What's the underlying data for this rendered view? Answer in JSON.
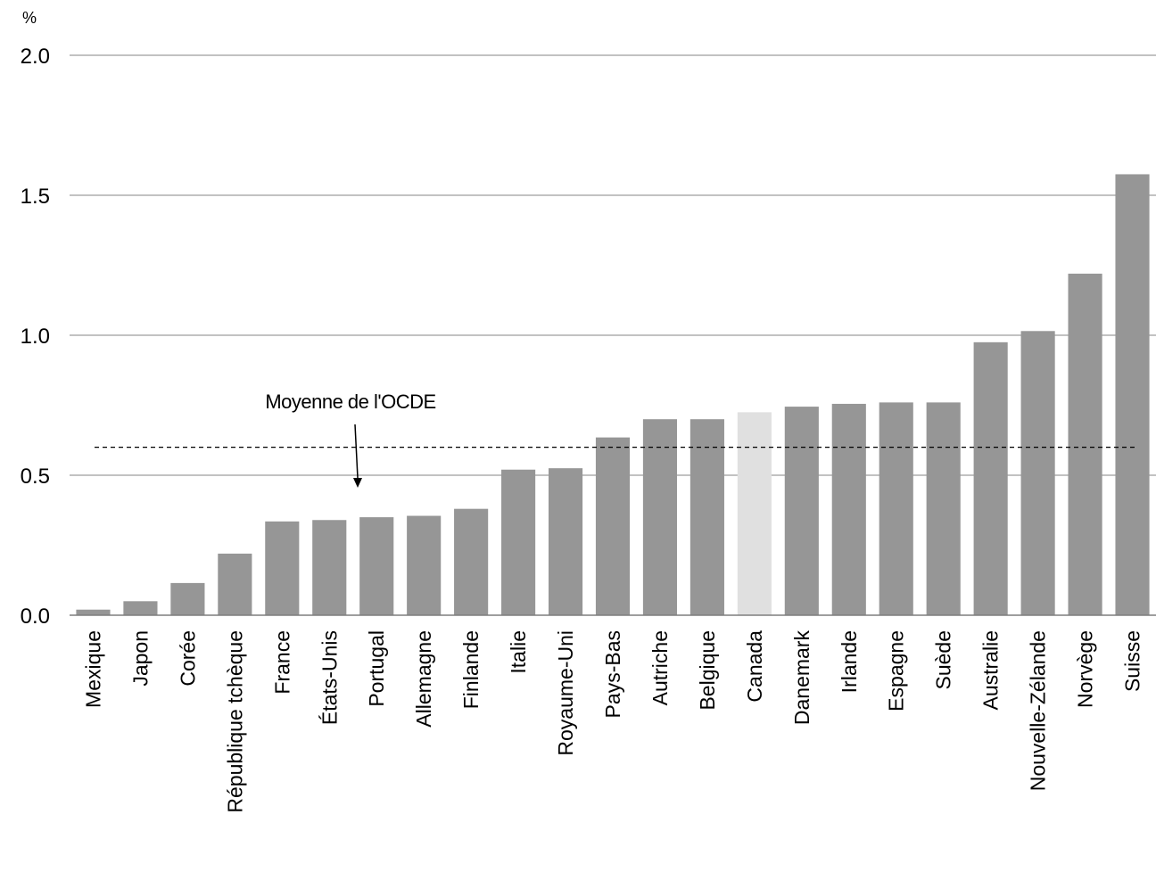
{
  "chart_data": {
    "type": "bar",
    "unit_label": "%",
    "ylim": [
      0,
      2.0
    ],
    "y_ticks": [
      "0.0",
      "0.5",
      "1.0",
      "1.5",
      "2.0"
    ],
    "y_tick_values": [
      0,
      0.5,
      1.0,
      1.5,
      2.0
    ],
    "grid": true,
    "categories": [
      "Mexique",
      "Japon",
      "Corée",
      "République tchèque",
      "France",
      "États-Unis",
      "Portugal",
      "Allemagne",
      "Finlande",
      "Italie",
      "Royaume-Uni",
      "Pays-Bas",
      "Autriche",
      "Belgique",
      "Canada",
      "Danemark",
      "Irlande",
      "Espagne",
      "Suède",
      "Australie",
      "Nouvelle-Zélande",
      "Norvège",
      "Suisse"
    ],
    "values": [
      0.02,
      0.05,
      0.115,
      0.22,
      0.335,
      0.34,
      0.35,
      0.355,
      0.38,
      0.52,
      0.525,
      0.635,
      0.7,
      0.7,
      0.725,
      0.745,
      0.755,
      0.76,
      0.76,
      0.975,
      1.015,
      1.22,
      1.575
    ],
    "highlight_category": "Canada",
    "colors": {
      "bar": "#969696",
      "highlight": "#e0e0e0",
      "grid": "#9e9e9e",
      "axis": "#7f7f7f"
    },
    "reference_line": {
      "label": "Moyenne de l'OCDE",
      "value": 0.6,
      "style": "dashed"
    }
  }
}
